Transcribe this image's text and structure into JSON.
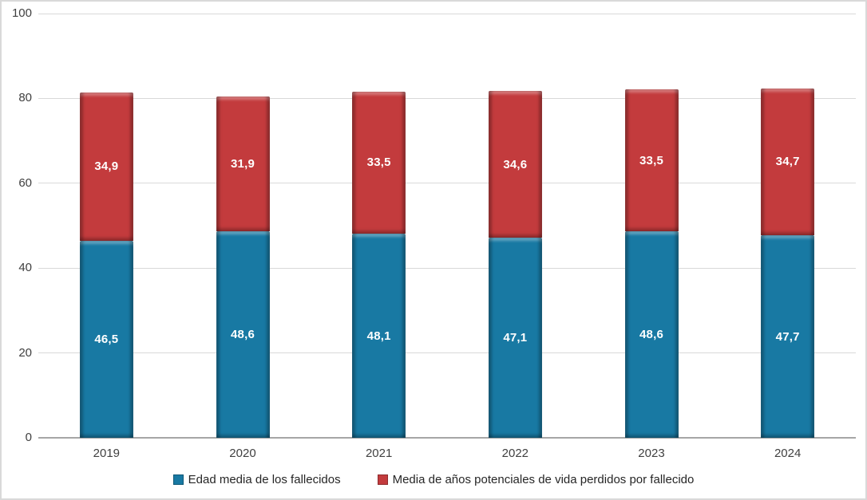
{
  "chart_data": {
    "type": "bar",
    "stacked": true,
    "title": "",
    "xlabel": "",
    "ylabel": "",
    "categories": [
      "2019",
      "2020",
      "2021",
      "2022",
      "2023",
      "2024"
    ],
    "series": [
      {
        "name": "Edad media de los fallecidos",
        "color": "#1879a3",
        "border_color": "#0e5876",
        "values": [
          46.5,
          48.6,
          48.1,
          47.1,
          48.6,
          47.7
        ],
        "value_labels": [
          "46,5",
          "48,6",
          "48,1",
          "47,1",
          "48,6",
          "47,7"
        ]
      },
      {
        "name": "Media de años potenciales de vida perdidos por fallecido",
        "color": "#c33b3d",
        "border_color": "#8e2b2d",
        "values": [
          34.9,
          31.9,
          33.5,
          34.6,
          33.5,
          34.7
        ],
        "value_labels": [
          "34,9",
          "31,9",
          "33,5",
          "34,6",
          "33,5",
          "34,7"
        ]
      }
    ],
    "ylim": [
      0,
      100
    ],
    "yticks": [
      0,
      20,
      40,
      60,
      80,
      100
    ],
    "ytick_labels": [
      "0",
      "20",
      "40",
      "60",
      "80",
      "100"
    ],
    "grid": true,
    "legend_position": "bottom",
    "colors": {
      "gridline": "#d9d9d9",
      "axis_line": "#a6a6a6",
      "tick_text": "#404040",
      "data_label_text": "#ffffff",
      "frame_border": "#d9d9d9",
      "background": "#ffffff"
    }
  }
}
